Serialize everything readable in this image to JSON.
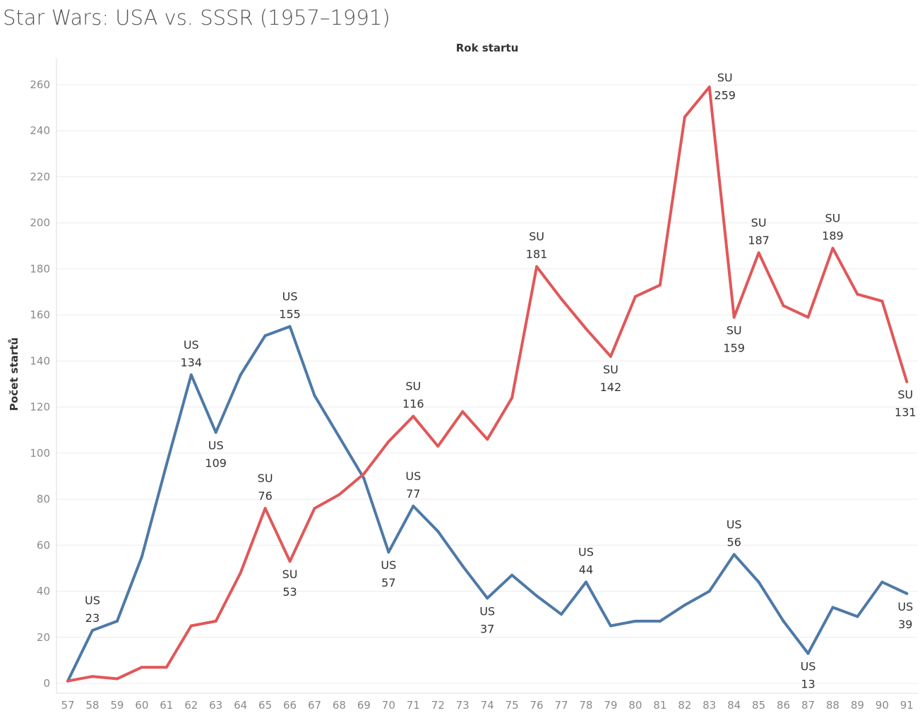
{
  "title": "Star Wars: USA vs. SSSR (1957–1991)",
  "chart_data": {
    "type": "line",
    "title": "Star Wars: USA vs. SSSR (1957–1991)",
    "xlabel": "Rok startu",
    "ylabel": "Počet startů",
    "ylim": [
      0,
      260
    ],
    "yticks": [
      0,
      20,
      40,
      60,
      80,
      100,
      120,
      140,
      160,
      180,
      200,
      220,
      240,
      260
    ],
    "grid": true,
    "x": [
      "57",
      "58",
      "59",
      "60",
      "61",
      "62",
      "63",
      "64",
      "65",
      "66",
      "67",
      "68",
      "69",
      "70",
      "71",
      "72",
      "73",
      "74",
      "75",
      "76",
      "77",
      "78",
      "79",
      "80",
      "81",
      "82",
      "83",
      "84",
      "85",
      "86",
      "87",
      "88",
      "89",
      "90",
      "91"
    ],
    "series": [
      {
        "name": "US",
        "color": "#4e79a7",
        "values": [
          1,
          23,
          27,
          55,
          95,
          134,
          109,
          134,
          151,
          155,
          125,
          107,
          89,
          57,
          77,
          66,
          51,
          37,
          47,
          38,
          30,
          44,
          25,
          27,
          27,
          34,
          40,
          56,
          44,
          27,
          13,
          33,
          29,
          44,
          39
        ]
      },
      {
        "name": "SU",
        "color": "#e15759",
        "values": [
          1,
          3,
          2,
          7,
          7,
          25,
          27,
          48,
          76,
          53,
          76,
          82,
          91,
          105,
          116,
          103,
          118,
          106,
          124,
          181,
          167,
          154,
          142,
          168,
          173,
          246,
          259,
          159,
          187,
          164,
          159,
          189,
          169,
          166,
          131
        ]
      }
    ],
    "annotations": [
      {
        "series": "US",
        "x": "58",
        "label": "US",
        "value": "23",
        "pos": "above"
      },
      {
        "series": "US",
        "x": "62",
        "label": "US",
        "value": "134",
        "pos": "above"
      },
      {
        "series": "US",
        "x": "63",
        "label": "US",
        "value": "109",
        "pos": "below"
      },
      {
        "series": "US",
        "x": "66",
        "label": "US",
        "value": "155",
        "pos": "above"
      },
      {
        "series": "US",
        "x": "70",
        "label": "US",
        "value": "57",
        "pos": "below"
      },
      {
        "series": "US",
        "x": "71",
        "label": "US",
        "value": "77",
        "pos": "above"
      },
      {
        "series": "US",
        "x": "74",
        "label": "US",
        "value": "37",
        "pos": "below"
      },
      {
        "series": "US",
        "x": "78",
        "label": "US",
        "value": "44",
        "pos": "above"
      },
      {
        "series": "US",
        "x": "84",
        "label": "US",
        "value": "56",
        "pos": "above"
      },
      {
        "series": "US",
        "x": "87",
        "label": "US",
        "value": "13",
        "pos": "below"
      },
      {
        "series": "US",
        "x": "91",
        "label": "US",
        "value": "39",
        "pos": "below"
      },
      {
        "series": "SU",
        "x": "65",
        "label": "SU",
        "value": "76",
        "pos": "above"
      },
      {
        "series": "SU",
        "x": "66",
        "label": "SU",
        "value": "53",
        "pos": "below"
      },
      {
        "series": "SU",
        "x": "71",
        "label": "SU",
        "value": "116",
        "pos": "above"
      },
      {
        "series": "SU",
        "x": "76",
        "label": "SU",
        "value": "181",
        "pos": "above"
      },
      {
        "series": "SU",
        "x": "79",
        "label": "SU",
        "value": "142",
        "pos": "below"
      },
      {
        "series": "SU",
        "x": "83",
        "label": "SU",
        "value": "259",
        "pos": "right"
      },
      {
        "series": "SU",
        "x": "84",
        "label": "SU",
        "value": "159",
        "pos": "below"
      },
      {
        "series": "SU",
        "x": "85",
        "label": "SU",
        "value": "187",
        "pos": "above"
      },
      {
        "series": "SU",
        "x": "88",
        "label": "SU",
        "value": "189",
        "pos": "above"
      },
      {
        "series": "SU",
        "x": "91",
        "label": "SU",
        "value": "131",
        "pos": "below"
      }
    ]
  }
}
